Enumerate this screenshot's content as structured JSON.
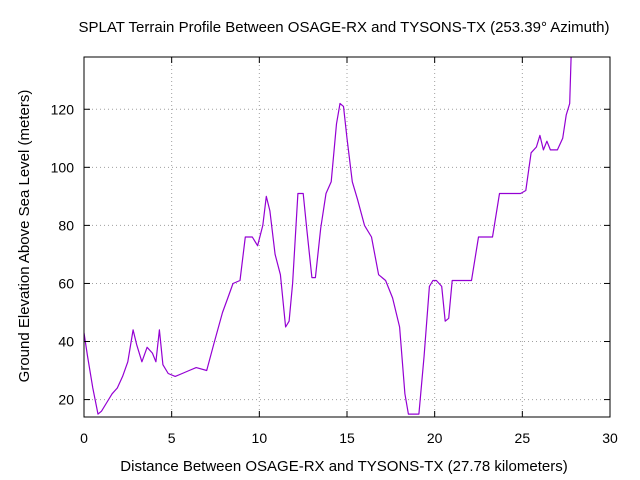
{
  "chart_data": {
    "type": "line",
    "title": "SPLAT Terrain Profile Between OSAGE-RX and TYSONS-TX (253.39° Azimuth)",
    "xlabel": "Distance Between OSAGE-RX and TYSONS-TX (27.78 kilometers)",
    "ylabel": "Ground Elevation Above Sea Level (meters)",
    "xlim": [
      0,
      30
    ],
    "ylim": [
      14,
      138
    ],
    "x_ticks": [
      0,
      5,
      10,
      15,
      20,
      25,
      30
    ],
    "x_tick_labels": [
      "0",
      "5",
      "10",
      "15",
      "20",
      "25",
      "30"
    ],
    "y_ticks": [
      20,
      40,
      60,
      80,
      100,
      120
    ],
    "y_tick_labels": [
      "20",
      "40",
      "60",
      "80",
      "100",
      "120"
    ],
    "grid": true,
    "grid_style": "dotted",
    "line_color": "#9400d3",
    "axis_color": "#000000",
    "grid_color": "#a0a0a0",
    "series": [
      {
        "name": "",
        "x": [
          0,
          0.2,
          0.5,
          0.8,
          1.0,
          1.3,
          1.6,
          1.9,
          2.2,
          2.5,
          2.8,
          3.0,
          3.3,
          3.6,
          3.9,
          4.1,
          4.3,
          4.5,
          4.8,
          5.2,
          5.6,
          6.0,
          6.4,
          7.0,
          7.4,
          7.9,
          8.2,
          8.5,
          8.9,
          9.2,
          9.6,
          9.9,
          10.2,
          10.4,
          10.6,
          10.9,
          11.2,
          11.5,
          11.7,
          11.9,
          12.2,
          12.5,
          12.7,
          13.0,
          13.2,
          13.5,
          13.8,
          14.1,
          14.4,
          14.6,
          14.8,
          15.0,
          15.3,
          15.6,
          16.0,
          16.4,
          16.8,
          17.2,
          17.6,
          18.0,
          18.3,
          18.5,
          18.7,
          19.1,
          19.4,
          19.7,
          19.9,
          20.1,
          20.4,
          20.6,
          20.8,
          21.0,
          21.4,
          21.8,
          22.1,
          22.5,
          22.9,
          23.3,
          23.7,
          24.1,
          24.5,
          24.9,
          25.2,
          25.5,
          25.8,
          26.0,
          26.2,
          26.4,
          26.6,
          27.0,
          27.3,
          27.5,
          27.7,
          27.78
        ],
        "y": [
          43,
          35,
          24,
          15,
          16,
          19,
          22,
          24,
          28,
          33,
          44,
          39,
          33,
          38,
          36,
          33,
          44,
          32,
          29,
          28,
          29,
          30,
          31,
          30,
          39,
          50,
          55,
          60,
          61,
          76,
          76,
          73,
          80,
          90,
          85,
          70,
          63,
          45,
          47,
          60,
          91,
          91,
          79,
          62,
          62,
          79,
          91,
          95,
          115,
          122,
          121,
          110,
          95,
          89,
          80,
          76,
          63,
          61,
          55,
          45,
          22,
          15,
          15,
          15,
          35,
          59,
          61,
          61,
          59,
          47,
          48,
          61,
          61,
          61,
          61,
          76,
          76,
          76,
          91,
          91,
          91,
          91,
          92,
          105,
          107,
          111,
          106,
          109,
          106,
          106,
          110,
          118,
          122,
          138
        ]
      }
    ]
  }
}
